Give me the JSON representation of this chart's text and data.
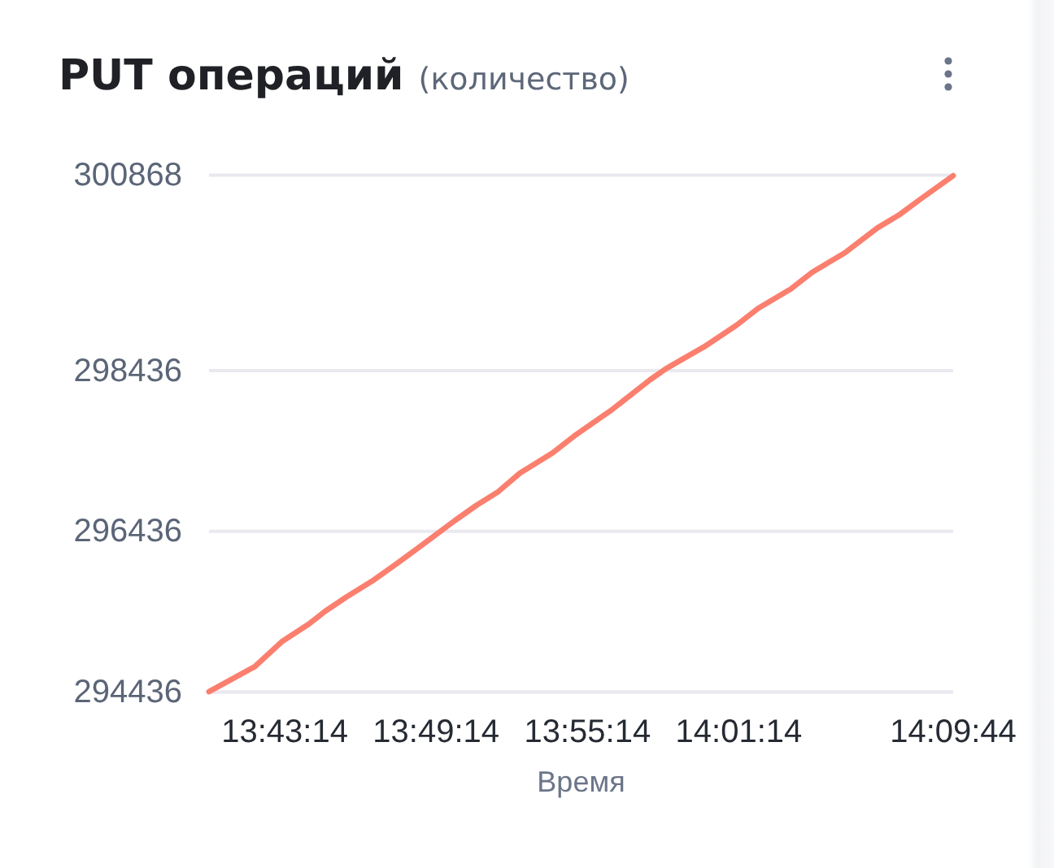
{
  "chart_data": {
    "type": "line",
    "title": "PUT операций",
    "subtitle": "(количество)",
    "xlabel": "Время",
    "x": [
      13.6706,
      13.7008,
      13.7186,
      13.7365,
      13.7473,
      13.7615,
      13.7795,
      13.7937,
      13.8045,
      13.8188,
      13.8331,
      13.8474,
      13.8618,
      13.876,
      13.8975,
      13.9118,
      13.9369,
      13.9619,
      13.9726,
      13.9976,
      14.0191,
      14.0334,
      14.0549,
      14.0692,
      14.0906,
      14.1121,
      14.1263,
      14.1407,
      14.1622
    ],
    "series": [
      {
        "color": "#fb7f6e",
        "values": [
          294440,
          294750,
          295060,
          295280,
          295440,
          295620,
          295830,
          296020,
          296170,
          296370,
          296570,
          296760,
          296930,
          297160,
          297410,
          297620,
          297950,
          298320,
          298460,
          298730,
          299000,
          299210,
          299450,
          299660,
          299900,
          300210,
          300370,
          300570,
          300860
        ]
      }
    ],
    "xlim": [
      13.6706,
      14.1622
    ],
    "xticks": [
      {
        "value": 13.7206,
        "label": "13:43:14"
      },
      {
        "value": 13.8206,
        "label": "13:49:14"
      },
      {
        "value": 13.9206,
        "label": "13:55:14"
      },
      {
        "value": 14.0206,
        "label": "14:01:14"
      },
      {
        "value": 14.1622,
        "label": "14:09:44"
      }
    ],
    "ylim": [
      294436,
      300868
    ],
    "yticks": [
      294436,
      296436,
      298436,
      300868
    ],
    "grid": "y"
  }
}
